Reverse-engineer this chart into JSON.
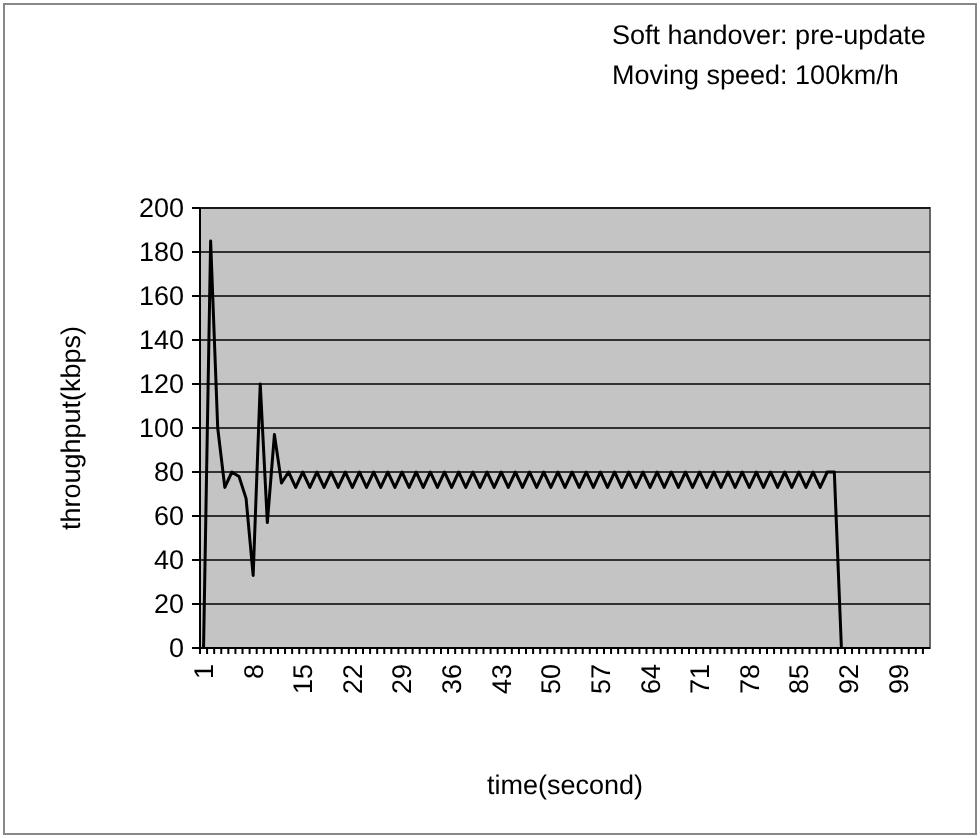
{
  "chart_data": {
    "type": "line",
    "xlabel": "time(second)",
    "ylabel": "throughput(kbps)",
    "annotations": [
      "Soft handover: pre-update",
      "Moving speed: 100km/h"
    ],
    "categories": [
      "1",
      null,
      null,
      null,
      null,
      null,
      null,
      "8",
      null,
      null,
      null,
      null,
      null,
      null,
      "15",
      null,
      null,
      null,
      null,
      null,
      null,
      "22",
      null,
      null,
      null,
      null,
      null,
      null,
      "29",
      null,
      null,
      null,
      null,
      null,
      null,
      "36",
      null,
      null,
      null,
      null,
      null,
      null,
      "43",
      null,
      null,
      null,
      null,
      null,
      null,
      "50",
      null,
      null,
      null,
      null,
      null,
      null,
      "57",
      null,
      null,
      null,
      null,
      null,
      null,
      "64",
      null,
      null,
      null,
      null,
      null,
      null,
      "71",
      null,
      null,
      null,
      null,
      null,
      null,
      "78",
      null,
      null,
      null,
      null,
      null,
      null,
      "85",
      null,
      null,
      null,
      null,
      null,
      null,
      "92",
      null,
      null,
      null,
      null,
      null,
      null,
      "99",
      null,
      null,
      null,
      null
    ],
    "series": [
      {
        "color": "#000000",
        "values": [
          0,
          185,
          100,
          73,
          80,
          78,
          68,
          33,
          120,
          57,
          97,
          75,
          80,
          73,
          80,
          73,
          80,
          73,
          80,
          73,
          80,
          73,
          80,
          73,
          80,
          73,
          80,
          73,
          80,
          73,
          80,
          73,
          80,
          73,
          80,
          73,
          80,
          73,
          80,
          73,
          80,
          73,
          80,
          73,
          80,
          73,
          80,
          73,
          80,
          73,
          80,
          73,
          80,
          73,
          80,
          73,
          80,
          73,
          80,
          73,
          80,
          73,
          80,
          73,
          80,
          73,
          80,
          73,
          80,
          73,
          80,
          73,
          80,
          73,
          80,
          73,
          80,
          73,
          80,
          73,
          80,
          73,
          80,
          73,
          80,
          73,
          80,
          73,
          80,
          80,
          0,
          null,
          null,
          null,
          null,
          null,
          null,
          null,
          null,
          null,
          null,
          null,
          null
        ]
      }
    ],
    "ylim": [
      0,
      200
    ],
    "yticks": [
      0,
      20,
      40,
      60,
      80,
      100,
      120,
      140,
      160,
      180,
      200
    ],
    "grid": "y",
    "line_style": "solid"
  }
}
